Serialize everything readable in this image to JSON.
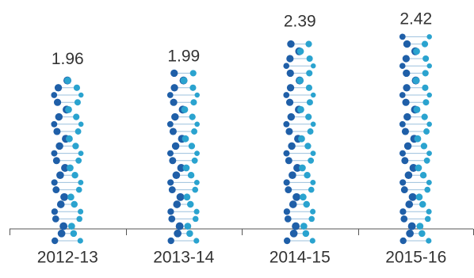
{
  "chart_data": {
    "type": "bar",
    "categories": [
      "2012-13",
      "2013-14",
      "2014-15",
      "2015-16"
    ],
    "values": [
      1.96,
      1.99,
      2.39,
      2.42
    ],
    "color": "#1f5fa8",
    "accent_color": "#2aa3cf"
  }
}
